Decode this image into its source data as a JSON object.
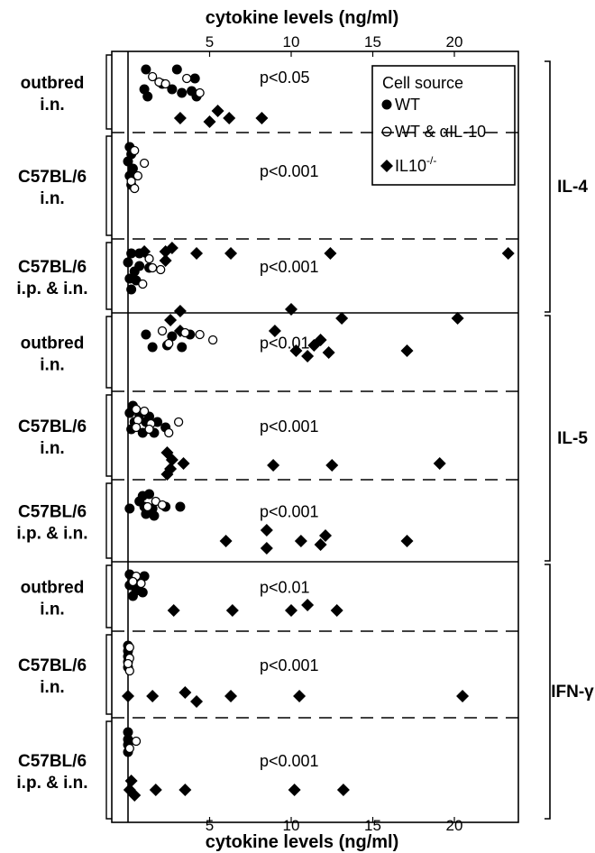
{
  "chart_data": {
    "type": "scatter",
    "title": "",
    "xlabel_top": "cytokine levels (ng/ml)",
    "xlabel_bottom": "cytokine levels (ng/ml)",
    "xlim": [
      0,
      23.5
    ],
    "xticks": [
      5,
      10,
      15,
      20
    ],
    "legend": {
      "title": "Cell source",
      "placement": "top-right",
      "entries": [
        {
          "marker": "filled-circle",
          "label": "WT"
        },
        {
          "marker": "open-circle",
          "label": "WT & αIL-10"
        },
        {
          "marker": "diamond",
          "label": "IL10",
          "superscript": "-/-"
        }
      ]
    },
    "groups": [
      {
        "name": "IL-4",
        "panels": [
          0,
          1,
          2
        ]
      },
      {
        "name": "IL-5",
        "panels": [
          3,
          4,
          5
        ]
      },
      {
        "name": "IFN-γ",
        "panels": [
          6,
          7,
          8
        ]
      }
    ],
    "panels": [
      {
        "label_line1": "outbred",
        "label_line2": "i.n.",
        "pvalue": "p<0.05",
        "wt": [
          [
            1.1,
            0.2
          ],
          [
            2.1,
            0.6
          ],
          [
            3.0,
            0.2
          ],
          [
            4.1,
            0.45
          ],
          [
            1.0,
            0.75
          ],
          [
            2.7,
            0.75
          ],
          [
            3.9,
            0.8
          ],
          [
            3.3,
            0.85
          ],
          [
            4.2,
            0.95
          ],
          [
            1.2,
            0.95
          ]
        ],
        "wt_anti": [
          [
            1.5,
            0.4
          ],
          [
            1.9,
            0.55
          ],
          [
            2.3,
            0.6
          ],
          [
            3.6,
            0.45
          ],
          [
            4.4,
            0.85
          ]
        ],
        "ko": [
          [
            3.2,
            1.55
          ],
          [
            5.0,
            1.65
          ],
          [
            5.5,
            1.35
          ],
          [
            6.2,
            1.55
          ],
          [
            8.2,
            1.55
          ]
        ]
      },
      {
        "label_line1": "C57BL/6",
        "label_line2": "i.n.",
        "pvalue": "p<0.001",
        "wt": [
          [
            0.1,
            0.1
          ],
          [
            0.2,
            0.3
          ],
          [
            0.0,
            0.5
          ],
          [
            0.3,
            0.7
          ],
          [
            0.1,
            0.9
          ],
          [
            0.2,
            1.15
          ]
        ],
        "wt_anti": [
          [
            0.4,
            0.2
          ],
          [
            1.0,
            0.55
          ],
          [
            0.6,
            0.9
          ],
          [
            0.2,
            1.05
          ],
          [
            0.4,
            1.25
          ]
        ],
        "ko": [
          [
            1.0,
            3.0
          ],
          [
            2.3,
            3.0
          ],
          [
            2.7,
            2.9
          ],
          [
            4.2,
            3.05
          ],
          [
            6.3,
            3.05
          ],
          [
            12.4,
            3.05
          ],
          [
            23.3,
            3.05
          ],
          [
            2.3,
            3.25
          ]
        ]
      },
      {
        "label_line1": "C57BL/6",
        "label_line2": "i.p. & i.n.",
        "pvalue": "p<0.001",
        "wt": [
          [
            0.2,
            0.1
          ],
          [
            0.7,
            0.1
          ],
          [
            0.0,
            0.35
          ],
          [
            0.7,
            0.45
          ],
          [
            1.3,
            0.5
          ],
          [
            0.4,
            0.6
          ],
          [
            0.1,
            0.8
          ],
          [
            0.5,
            0.85
          ],
          [
            0.2,
            1.1
          ]
        ],
        "wt_anti": [
          [
            1.3,
            0.25
          ],
          [
            2.0,
            0.55
          ],
          [
            1.5,
            0.5
          ],
          [
            0.9,
            0.95
          ]
        ],
        "ko": [
          [
            3.2,
            1.7
          ],
          [
            2.6,
            1.95
          ],
          [
            3.2,
            2.25
          ],
          [
            9.0,
            2.25
          ],
          [
            10.0,
            1.65
          ],
          [
            13.1,
            1.9
          ],
          [
            20.2,
            1.9
          ]
        ]
      },
      {
        "label_line1": "outbred",
        "label_line2": "i.n.",
        "pvalue": "p<0.01",
        "wt": [
          [
            1.1,
            0.3
          ],
          [
            2.7,
            0.35
          ],
          [
            3.8,
            0.3
          ],
          [
            1.5,
            0.65
          ],
          [
            2.4,
            0.6
          ],
          [
            3.3,
            0.65
          ]
        ],
        "wt_anti": [
          [
            2.1,
            0.2
          ],
          [
            3.5,
            0.25
          ],
          [
            4.4,
            0.3
          ],
          [
            5.2,
            0.45
          ],
          [
            2.5,
            0.55
          ]
        ],
        "ko": [
          [
            11.8,
            0.45
          ],
          [
            11.4,
            0.6
          ],
          [
            10.3,
            0.75
          ],
          [
            12.3,
            0.8
          ],
          [
            11.0,
            0.9
          ],
          [
            17.1,
            0.75
          ]
        ]
      },
      {
        "label_line1": "C57BL/6",
        "label_line2": "i.n.",
        "pvalue": "p<0.001",
        "wt": [
          [
            0.3,
            0.1
          ],
          [
            0.1,
            0.3
          ],
          [
            0.7,
            0.35
          ],
          [
            1.3,
            0.4
          ],
          [
            0.4,
            0.55
          ],
          [
            1.1,
            0.55
          ],
          [
            1.8,
            0.55
          ],
          [
            2.3,
            0.7
          ],
          [
            0.2,
            0.75
          ],
          [
            0.9,
            0.85
          ],
          [
            1.6,
            0.85
          ]
        ],
        "wt_anti": [
          [
            0.5,
            0.2
          ],
          [
            1.0,
            0.25
          ],
          [
            0.6,
            0.5
          ],
          [
            1.4,
            0.6
          ],
          [
            0.5,
            0.7
          ],
          [
            3.1,
            0.55
          ],
          [
            2.5,
            0.85
          ],
          [
            1.3,
            0.75
          ]
        ],
        "ko": [
          [
            2.4,
            1.4
          ],
          [
            2.7,
            1.6
          ],
          [
            3.4,
            1.7
          ],
          [
            2.6,
            1.85
          ],
          [
            2.4,
            2.0
          ],
          [
            8.9,
            1.75
          ],
          [
            12.5,
            1.75
          ],
          [
            19.1,
            1.7
          ]
        ]
      },
      {
        "label_line1": "C57BL/6",
        "label_line2": "i.p. & i.n.",
        "pvalue": "p<0.001",
        "wt": [
          [
            0.1,
            0.5
          ],
          [
            1.0,
            0.45
          ],
          [
            1.3,
            0.1
          ],
          [
            1.5,
            0.5
          ],
          [
            2.3,
            0.45
          ],
          [
            3.2,
            0.45
          ],
          [
            0.7,
            0.3
          ],
          [
            1.1,
            0.65
          ],
          [
            1.6,
            0.7
          ],
          [
            0.9,
            0.15
          ]
        ],
        "wt_anti": [
          [
            1.7,
            0.3
          ],
          [
            1.2,
            0.45
          ],
          [
            2.1,
            0.4
          ]
        ],
        "ko": [
          [
            6.0,
            1.4
          ],
          [
            8.5,
            1.1
          ],
          [
            8.5,
            1.6
          ],
          [
            10.6,
            1.4
          ],
          [
            12.1,
            1.25
          ],
          [
            11.8,
            1.5
          ],
          [
            17.1,
            1.4
          ]
        ]
      },
      {
        "label_line1": "outbred",
        "label_line2": "i.n.",
        "pvalue": "p<0.01",
        "wt": [
          [
            0.1,
            0.05
          ],
          [
            1.0,
            0.1
          ],
          [
            0.5,
            0.35
          ],
          [
            0.9,
            0.55
          ],
          [
            0.3,
            0.65
          ],
          [
            0.1,
            0.35
          ],
          [
            0.5,
            0.5
          ]
        ],
        "wt_anti": [
          [
            0.5,
            0.1
          ],
          [
            0.3,
            0.25
          ],
          [
            0.8,
            0.3
          ]
        ],
        "ko": [
          [
            2.8,
            1.05
          ],
          [
            6.4,
            1.05
          ],
          [
            10.0,
            1.05
          ],
          [
            11.0,
            0.9
          ],
          [
            12.8,
            1.05
          ]
        ]
      },
      {
        "label_line1": "C57BL/6",
        "label_line2": "i.n.",
        "pvalue": "p<0.001",
        "wt": [
          [
            0.0,
            0.1
          ],
          [
            0.0,
            0.25
          ],
          [
            0.0,
            0.4
          ],
          [
            0.0,
            0.55
          ],
          [
            0.0,
            0.7
          ]
        ],
        "wt_anti": [
          [
            0.1,
            0.15
          ],
          [
            0.1,
            0.45
          ],
          [
            0.1,
            0.8
          ],
          [
            0.0,
            0.6
          ]
        ],
        "ko": [
          [
            0.0,
            1.5
          ],
          [
            1.5,
            1.5
          ],
          [
            3.5,
            1.4
          ],
          [
            4.2,
            1.65
          ],
          [
            6.3,
            1.5
          ],
          [
            10.5,
            1.5
          ],
          [
            20.5,
            1.5
          ]
        ]
      },
      {
        "label_line1": "C57BL/6",
        "label_line2": "i.p. & i.n.",
        "pvalue": "p<0.001",
        "wt": [
          [
            0.0,
            0.1
          ],
          [
            0.0,
            0.3
          ],
          [
            0.0,
            0.45
          ],
          [
            0.0,
            0.65
          ]
        ],
        "wt_anti": [
          [
            0.5,
            0.35
          ],
          [
            0.1,
            0.55
          ]
        ],
        "ko": [
          [
            0.2,
            1.45
          ],
          [
            0.1,
            1.7
          ],
          [
            0.4,
            1.85
          ],
          [
            1.7,
            1.7
          ],
          [
            3.5,
            1.7
          ],
          [
            10.2,
            1.7
          ],
          [
            13.2,
            1.7
          ]
        ]
      }
    ]
  }
}
